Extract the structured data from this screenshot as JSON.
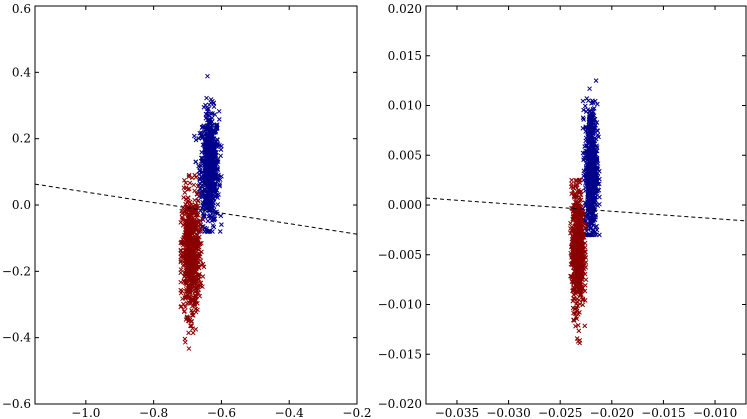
{
  "chart_data": [
    {
      "type": "scatter",
      "marker": "x",
      "grid": false,
      "xlim": [
        -1.15,
        -0.2
      ],
      "ylim": [
        -0.6,
        0.6
      ],
      "xticks": [
        -1.0,
        -0.8,
        -0.6,
        -0.4,
        -0.2
      ],
      "xtick_labels": [
        "−1.0",
        "−0.8",
        "−0.6",
        "−0.4",
        "−0.2"
      ],
      "yticks": [
        -0.6,
        -0.4,
        -0.2,
        0.0,
        0.2,
        0.4,
        0.6
      ],
      "ytick_labels": [
        "−0.6",
        "−0.4",
        "−0.2",
        "0.0",
        "0.2",
        "0.4",
        "0.6"
      ],
      "boundary_line": {
        "x": [
          -1.15,
          -0.2
        ],
        "y": [
          0.063,
          -0.088
        ],
        "style": "dashed",
        "color": "#000000"
      },
      "series": [
        {
          "color": "#00008b",
          "x_mean": -0.635,
          "x_std": 0.014,
          "y_mean": 0.11,
          "y_std": 0.085,
          "x_range": [
            -0.68,
            -0.6
          ],
          "y_range": [
            -0.08,
            0.41
          ]
        },
        {
          "color": "#8b0000",
          "x_mean": -0.69,
          "x_std": 0.013,
          "y_mean": -0.15,
          "y_std": 0.09,
          "x_range": [
            -0.72,
            -0.64
          ],
          "y_range": [
            -0.44,
            0.09
          ]
        }
      ]
    },
    {
      "type": "scatter",
      "marker": "x",
      "grid": false,
      "xlim": [
        -0.038,
        -0.007
      ],
      "ylim": [
        -0.02,
        0.02
      ],
      "xticks": [
        -0.035,
        -0.03,
        -0.025,
        -0.02,
        -0.015,
        -0.01
      ],
      "xtick_labels": [
        "−0.035",
        "−0.030",
        "−0.025",
        "−0.020",
        "−0.015",
        "−0.010"
      ],
      "yticks": [
        -0.02,
        -0.015,
        -0.01,
        -0.005,
        0.0,
        0.005,
        0.01,
        0.015,
        0.02
      ],
      "ytick_labels": [
        "−0.020",
        "−0.015",
        "−0.010",
        "−0.005",
        "0.000",
        "0.005",
        "0.010",
        "0.015",
        "0.020"
      ],
      "boundary_line": {
        "x": [
          -0.038,
          -0.007
        ],
        "y": [
          0.0007,
          -0.0016
        ],
        "style": "dashed",
        "color": "#000000"
      },
      "series": [
        {
          "color": "#00008b",
          "x_mean": -0.022,
          "x_std": 0.0003,
          "y_mean": 0.0035,
          "y_std": 0.0033,
          "x_range": [
            -0.0228,
            -0.0212
          ],
          "y_range": [
            -0.003,
            0.0137
          ]
        },
        {
          "color": "#8b0000",
          "x_mean": -0.0233,
          "x_std": 0.0003,
          "y_mean": -0.0045,
          "y_std": 0.003,
          "x_range": [
            -0.024,
            -0.0225
          ],
          "y_range": [
            -0.0145,
            0.0025
          ]
        }
      ]
    }
  ]
}
